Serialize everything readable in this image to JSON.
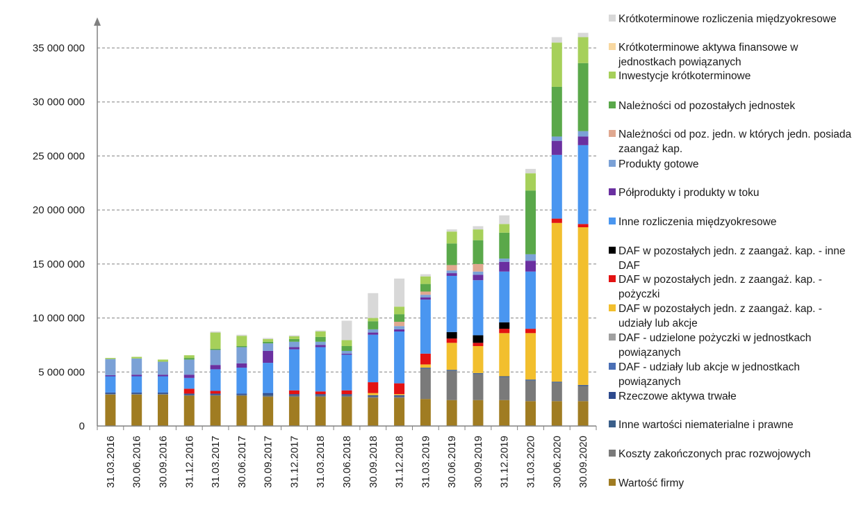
{
  "chart_data": {
    "type": "bar",
    "stacked": true,
    "ylim": [
      0,
      36000000
    ],
    "yticks": [
      0,
      5000000,
      10000000,
      15000000,
      20000000,
      25000000,
      30000000,
      35000000
    ],
    "ytick_labels": [
      "0",
      "5 000 000",
      "10 000 000",
      "15 000 000",
      "20 000 000",
      "25 000 000",
      "30 000 000",
      "35 000 000"
    ],
    "grid": "horizontal dashed",
    "legend_position": "right",
    "categories": [
      "31.03.2016",
      "30.06.2016",
      "30.09.2016",
      "31.12.2016",
      "31.03.2017",
      "30.06.2017",
      "30.09.2017",
      "31.12.2017",
      "31.03.2018",
      "30.06.2018",
      "30.09.2018",
      "31.12.2018",
      "31.03.2019",
      "30.06.2019",
      "30.09.2019",
      "31.12.2019",
      "31.03.2020",
      "30.06.2020",
      "30.09.2020"
    ],
    "series": [
      {
        "name": "Wartość firmy",
        "color": "#a07c22",
        "values": [
          2900000,
          2900000,
          2900000,
          2800000,
          2800000,
          2800000,
          2700000,
          2700000,
          2700000,
          2700000,
          2600000,
          2600000,
          2500000,
          2400000,
          2400000,
          2400000,
          2300000,
          2300000,
          2300000
        ]
      },
      {
        "name": "Koszty zakończonych prac rozwojowych",
        "color": "#7a7a7a",
        "values": [
          50000,
          50000,
          50000,
          50000,
          50000,
          50000,
          100000,
          100000,
          100000,
          100000,
          100000,
          100000,
          2800000,
          2700000,
          2400000,
          2100000,
          1900000,
          1700000,
          1400000
        ]
      },
      {
        "name": "Inne wartości niematerialne  i prawne",
        "color": "#3b5f8a",
        "values": [
          50000,
          50000,
          50000,
          50000,
          50000,
          50000,
          100000,
          50000,
          50000,
          50000,
          50000,
          50000,
          50000,
          50000,
          50000,
          50000,
          50000,
          50000,
          50000
        ]
      },
      {
        "name": "Rzeczowe aktywa trwałe",
        "color": "#2e4a8e",
        "values": [
          100000,
          100000,
          100000,
          100000,
          100000,
          100000,
          150000,
          100000,
          100000,
          100000,
          100000,
          100000,
          50000,
          50000,
          50000,
          50000,
          50000,
          50000,
          50000
        ]
      },
      {
        "name": "DAF - udziały lub akcje w jednostkach powiązanych",
        "color": "#4a6fb5",
        "values": [
          0,
          0,
          0,
          0,
          0,
          0,
          0,
          0,
          0,
          0,
          0,
          0,
          0,
          0,
          0,
          0,
          0,
          0,
          0
        ]
      },
      {
        "name": "DAF - udzielone pożyczki w jednostkach powiązanych",
        "color": "#a0a0a0",
        "values": [
          0,
          0,
          0,
          0,
          0,
          0,
          0,
          0,
          0,
          0,
          0,
          0,
          0,
          0,
          0,
          0,
          0,
          0,
          0
        ]
      },
      {
        "name": "DAF w pozostałych jedn. z zaangaż. kap. - udziały lub akcje",
        "color": "#f2bf2e",
        "values": [
          0,
          0,
          0,
          0,
          0,
          0,
          0,
          0,
          0,
          0,
          200000,
          100000,
          300000,
          2500000,
          2500000,
          4000000,
          4300000,
          14700000,
          14600000
        ]
      },
      {
        "name": "DAF w pozostałych jedn. z zaangaż. kap. - pożyczki",
        "color": "#e31212",
        "values": [
          0,
          0,
          0,
          450000,
          250000,
          0,
          0,
          350000,
          250000,
          350000,
          1000000,
          1000000,
          1000000,
          400000,
          300000,
          400000,
          400000,
          400000,
          300000
        ]
      },
      {
        "name": "DAF w pozostałych jedn. z zaangaż. kap. - inne DAF",
        "color": "#000000",
        "values": [
          0,
          0,
          0,
          0,
          0,
          0,
          0,
          0,
          0,
          0,
          0,
          0,
          0,
          600000,
          700000,
          600000,
          0,
          0,
          0
        ]
      },
      {
        "name": "Inne rozliczenia międzyokresowe",
        "color": "#4a96f0",
        "values": [
          1500000,
          1500000,
          1500000,
          1000000,
          2000000,
          2400000,
          2800000,
          3800000,
          4100000,
          3300000,
          4400000,
          4800000,
          5000000,
          5200000,
          5100000,
          4700000,
          5300000,
          5900000,
          7300000
        ]
      },
      {
        "name": "Półprodukty i produkty w toku",
        "color": "#6a30a0",
        "values": [
          100000,
          150000,
          150000,
          300000,
          400000,
          400000,
          1100000,
          200000,
          200000,
          100000,
          200000,
          200000,
          200000,
          250000,
          500000,
          900000,
          1000000,
          1300000,
          800000
        ]
      },
      {
        "name": "Produkty gotowe",
        "color": "#7ba1d6",
        "values": [
          1500000,
          1500000,
          1200000,
          1400000,
          1400000,
          1500000,
          700000,
          500000,
          300000,
          250000,
          300000,
          300000,
          250000,
          250000,
          300000,
          300000,
          600000,
          400000,
          500000
        ]
      },
      {
        "name": "Należności od poz. jedn. w których jedn. posiada zaangaż kap.",
        "color": "#e0a890",
        "values": [
          0,
          0,
          0,
          0,
          0,
          0,
          0,
          0,
          0,
          0,
          0,
          400000,
          300000,
          500000,
          700000,
          0,
          0,
          0,
          0
        ]
      },
      {
        "name": "Należności od pozostałych jednostek",
        "color": "#5aa84a",
        "values": [
          0,
          0,
          0,
          150000,
          100000,
          100000,
          150000,
          250000,
          450000,
          450000,
          750000,
          700000,
          700000,
          2000000,
          2200000,
          2400000,
          5900000,
          4600000,
          6300000
        ]
      },
      {
        "name": "Inwestycje krótkoterminowe",
        "color": "#a6d05a",
        "values": [
          100000,
          150000,
          200000,
          250000,
          1500000,
          950000,
          250000,
          250000,
          500000,
          550000,
          300000,
          700000,
          700000,
          1100000,
          1000000,
          800000,
          1600000,
          4100000,
          2400000
        ]
      },
      {
        "name": "Krótkoterminowe aktywa finansowe w jednostkach powiązanych",
        "color": "#f8d8a0",
        "values": [
          0,
          0,
          0,
          0,
          0,
          0,
          0,
          0,
          0,
          0,
          0,
          0,
          0,
          0,
          0,
          0,
          0,
          0,
          0
        ]
      },
      {
        "name": "Krótkoterminowe rozliczenia międzyokresowe",
        "color": "#d8d8d8",
        "values": [
          0,
          0,
          0,
          0,
          100000,
          100000,
          100000,
          100000,
          100000,
          1800000,
          2300000,
          2600000,
          200000,
          200000,
          300000,
          800000,
          400000,
          500000,
          400000
        ]
      }
    ]
  },
  "legend": {
    "items": [
      {
        "label": "Krótkoterminowe rozliczenia międzyokresowe",
        "color": "#d8d8d8"
      },
      {
        "label": "Krótkoterminowe aktywa finansowe w jednostkach powiązanych",
        "color": "#f8d8a0"
      },
      {
        "label": "Inwestycje krótkoterminowe",
        "color": "#a6d05a"
      },
      {
        "label": "Należności od pozostałych jednostek",
        "color": "#5aa84a"
      },
      {
        "label": "Należności od poz. jedn. w których jedn. posiada zaangaż kap.",
        "color": "#e0a890"
      },
      {
        "label": "Produkty gotowe",
        "color": "#7ba1d6"
      },
      {
        "label": "Półprodukty i produkty w toku",
        "color": "#6a30a0"
      },
      {
        "label": "Inne rozliczenia międzyokresowe",
        "color": "#4a96f0"
      },
      {
        "label": "DAF w pozostałych jedn. z zaangaż. kap. - inne DAF",
        "color": "#000000"
      },
      {
        "label": "DAF w pozostałych jedn. z zaangaż. kap. - pożyczki",
        "color": "#e31212"
      },
      {
        "label": "DAF w pozostałych jedn. z zaangaż. kap. - udziały lub akcje",
        "color": "#f2bf2e"
      },
      {
        "label": "DAF - udzielone pożyczki w jednostkach powiązanych",
        "color": "#a0a0a0"
      },
      {
        "label": "DAF - udziały lub akcje w jednostkach powiązanych",
        "color": "#4a6fb5"
      },
      {
        "label": "Rzeczowe aktywa trwałe",
        "color": "#2e4a8e"
      },
      {
        "label": "Inne wartości niematerialne  i prawne",
        "color": "#3b5f8a"
      },
      {
        "label": "Koszty zakończonych prac rozwojowych",
        "color": "#7a7a7a"
      },
      {
        "label": "Wartość firmy",
        "color": "#a07c22"
      }
    ]
  }
}
